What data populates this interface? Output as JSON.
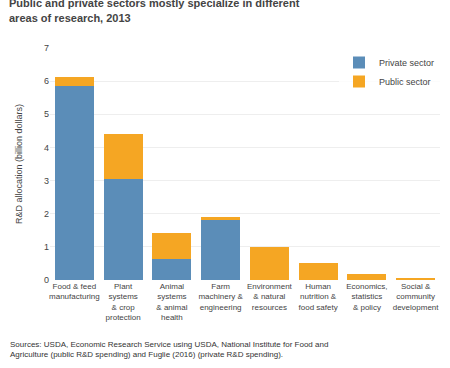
{
  "chart_data": {
    "type": "bar",
    "stacked": true,
    "title": "Public and private sectors mostly specialize in different areas of research, 2013",
    "ylabel": "R&D allocation (billion dollars)",
    "categories": [
      "Food & feed\nmanufacturing",
      "Plant\nsystems\n& crop\nprotection",
      "Animal\nsystems\n& animal\nhealth",
      "Farm\nmachinery &\nengineering",
      "Environment\n& natural\nresources",
      "Human\nnutrition &\nfood safety",
      "Economics,\nstatistics\n& policy",
      "Social &\ncommunity\ndevelopment"
    ],
    "series": [
      {
        "name": "Private sector",
        "color": "#5b8db8",
        "values": [
          5.85,
          3.05,
          0.62,
          1.82,
          0.0,
          0.0,
          0.0,
          0.0
        ]
      },
      {
        "name": "Public sector",
        "color": "#f5a623",
        "values": [
          0.27,
          1.35,
          0.8,
          0.08,
          0.99,
          0.5,
          0.18,
          0.07
        ]
      }
    ],
    "ylim": [
      0,
      7
    ],
    "yticks": [
      0,
      1,
      2,
      3,
      4,
      5,
      6,
      7
    ],
    "grid": true,
    "legend": "upper right",
    "annotations": [
      "Sources: USDA, Economic Research Service using USDA, National Institute for Food and\nAgriculture (public R&D spending) and Fuglie (2016) (private R&D spending)."
    ]
  }
}
